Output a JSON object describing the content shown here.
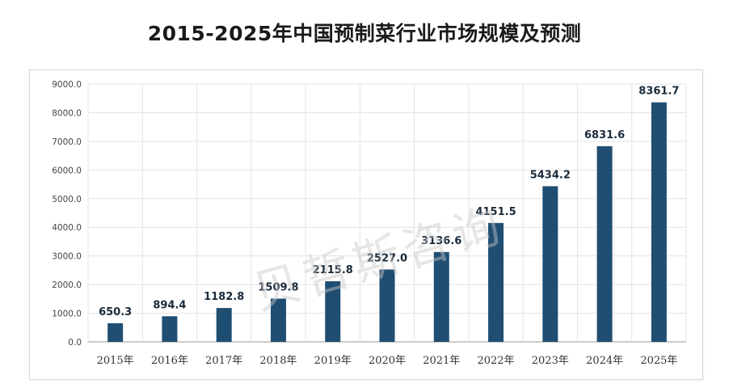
{
  "title": "2015-2025年中国预制菜行业市场规模及预测",
  "watermark": "贝哲斯咨询",
  "colors": {
    "bar": "#1f4e72",
    "grid": "#e3e3e3",
    "axis": "#444444",
    "label": "#1a2a3a"
  },
  "chart_data": {
    "type": "bar",
    "title": "2015-2025年中国预制菜行业市场规模及预测",
    "xlabel": "",
    "ylabel": "",
    "categories": [
      "2015年",
      "2016年",
      "2017年",
      "2018年",
      "2019年",
      "2020年",
      "2021年",
      "2022年",
      "2023年",
      "2024年",
      "2025年"
    ],
    "values": [
      650.3,
      894.4,
      1182.8,
      1509.8,
      2115.8,
      2527.0,
      3136.6,
      4151.5,
      5434.2,
      6831.6,
      8361.7
    ],
    "value_labels": [
      "650.3",
      "894.4",
      "1182.8",
      "1509.8",
      "2115.8",
      "2527.0",
      "3136.6",
      "4151.5",
      "5434.2",
      "6831.6",
      "8361.7"
    ],
    "ylim": [
      0,
      9000
    ],
    "yticks": [
      "0.0",
      "1000.0",
      "2000.0",
      "3000.0",
      "4000.0",
      "5000.0",
      "6000.0",
      "7000.0",
      "8000.0",
      "9000.0"
    ],
    "grid": true,
    "legend": "none"
  }
}
